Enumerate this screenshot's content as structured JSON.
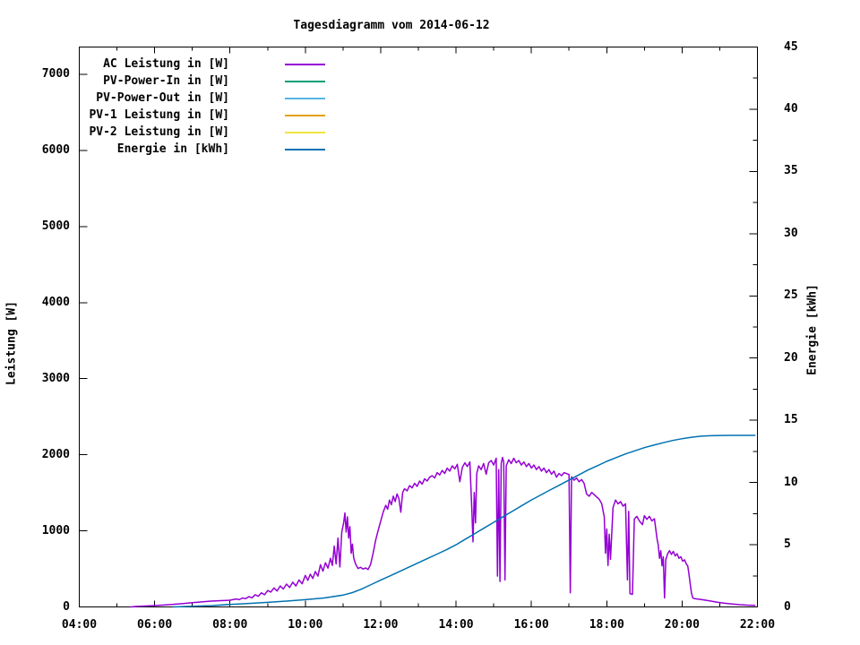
{
  "page": {
    "background": "#ffffff"
  },
  "chart_data": {
    "type": "line",
    "title": "Tagesdiagramm vom 2014-06-12",
    "grid": false,
    "legend_position": "inside-top-left",
    "x_axis": {
      "range_minutes": [
        240,
        1320
      ],
      "tick_labels": [
        "04:00",
        "06:00",
        "08:00",
        "10:00",
        "12:00",
        "14:00",
        "16:00",
        "18:00",
        "20:00",
        "22:00"
      ],
      "major_step_hours": 2,
      "minor_step_hours": 1
    },
    "y_left": {
      "label": "Leistung [W]",
      "range": [
        0,
        7360
      ],
      "ticks": [
        0,
        1000,
        2000,
        3000,
        4000,
        5000,
        6000,
        7000
      ],
      "tick_labels": [
        "0",
        "1000",
        "2000",
        "3000",
        "4000",
        "5000",
        "6000",
        "7000"
      ]
    },
    "y_right": {
      "label": "Energie [kWh]",
      "range": [
        0,
        45
      ],
      "major_step": 5,
      "minor_step": 2.5,
      "tick_labels": [
        "0",
        "5",
        "10",
        "15",
        "20",
        "25",
        "30",
        "35",
        "40",
        "45"
      ]
    },
    "legend": [
      {
        "label": "AC Leistung in [W]",
        "color": "#9400d3"
      },
      {
        "label": "PV-Power-In in [W]",
        "color": "#009e73"
      },
      {
        "label": "PV-Power-Out in [W]",
        "color": "#56b4e9"
      },
      {
        "label": "PV-1 Leistung in [W]",
        "color": "#e69f00"
      },
      {
        "label": "PV-2 Leistung in [W]",
        "color": "#f0e442"
      },
      {
        "label": "Energie in [kWh]",
        "color": "#0072b2"
      }
    ],
    "series": [
      {
        "name": "AC Leistung in [W]",
        "color": "#9400d3",
        "axis": "left",
        "points": [
          [
            322,
            0
          ],
          [
            330,
            6
          ],
          [
            345,
            12
          ],
          [
            360,
            18
          ],
          [
            375,
            25
          ],
          [
            390,
            34
          ],
          [
            405,
            44
          ],
          [
            420,
            55
          ],
          [
            435,
            66
          ],
          [
            450,
            76
          ],
          [
            465,
            82
          ],
          [
            480,
            88
          ],
          [
            490,
            105
          ],
          [
            495,
            95
          ],
          [
            500,
            118
          ],
          [
            505,
            108
          ],
          [
            510,
            135
          ],
          [
            515,
            120
          ],
          [
            520,
            160
          ],
          [
            525,
            140
          ],
          [
            530,
            185
          ],
          [
            535,
            160
          ],
          [
            540,
            215
          ],
          [
            545,
            195
          ],
          [
            550,
            250
          ],
          [
            555,
            210
          ],
          [
            560,
            275
          ],
          [
            565,
            235
          ],
          [
            570,
            300
          ],
          [
            575,
            255
          ],
          [
            580,
            325
          ],
          [
            585,
            275
          ],
          [
            590,
            355
          ],
          [
            595,
            305
          ],
          [
            600,
            415
          ],
          [
            604,
            350
          ],
          [
            608,
            430
          ],
          [
            612,
            375
          ],
          [
            616,
            465
          ],
          [
            620,
            405
          ],
          [
            624,
            555
          ],
          [
            628,
            470
          ],
          [
            632,
            580
          ],
          [
            636,
            510
          ],
          [
            640,
            640
          ],
          [
            643,
            545
          ],
          [
            646,
            800
          ],
          [
            649,
            565
          ],
          [
            652,
            905
          ],
          [
            655,
            525
          ],
          [
            658,
            985
          ],
          [
            661,
            1105
          ],
          [
            663,
            1235
          ],
          [
            665,
            985
          ],
          [
            667,
            1185
          ],
          [
            669,
            905
          ],
          [
            671,
            1055
          ],
          [
            673,
            705
          ],
          [
            675,
            825
          ],
          [
            677,
            645
          ],
          [
            680,
            565
          ],
          [
            684,
            505
          ],
          [
            688,
            520
          ],
          [
            692,
            498
          ],
          [
            696,
            512
          ],
          [
            700,
            492
          ],
          [
            704,
            560
          ],
          [
            708,
            705
          ],
          [
            712,
            875
          ],
          [
            716,
            1005
          ],
          [
            720,
            1125
          ],
          [
            724,
            1245
          ],
          [
            728,
            1335
          ],
          [
            731,
            1285
          ],
          [
            734,
            1405
          ],
          [
            737,
            1345
          ],
          [
            740,
            1455
          ],
          [
            743,
            1385
          ],
          [
            746,
            1485
          ],
          [
            749,
            1425
          ],
          [
            752,
            1245
          ],
          [
            755,
            1505
          ],
          [
            758,
            1555
          ],
          [
            762,
            1525
          ],
          [
            766,
            1595
          ],
          [
            770,
            1565
          ],
          [
            774,
            1625
          ],
          [
            778,
            1585
          ],
          [
            782,
            1655
          ],
          [
            786,
            1615
          ],
          [
            790,
            1685
          ],
          [
            794,
            1655
          ],
          [
            798,
            1705
          ],
          [
            802,
            1725
          ],
          [
            806,
            1695
          ],
          [
            810,
            1765
          ],
          [
            814,
            1735
          ],
          [
            818,
            1795
          ],
          [
            822,
            1755
          ],
          [
            826,
            1825
          ],
          [
            830,
            1785
          ],
          [
            834,
            1855
          ],
          [
            838,
            1815
          ],
          [
            842,
            1875
          ],
          [
            846,
            1645
          ],
          [
            850,
            1835
          ],
          [
            854,
            1895
          ],
          [
            858,
            1845
          ],
          [
            862,
            1905
          ],
          [
            865,
            1305
          ],
          [
            867,
            855
          ],
          [
            869,
            1505
          ],
          [
            871,
            1105
          ],
          [
            873,
            1755
          ],
          [
            876,
            1855
          ],
          [
            880,
            1805
          ],
          [
            884,
            1885
          ],
          [
            888,
            1745
          ],
          [
            892,
            1895
          ],
          [
            896,
            1925
          ],
          [
            900,
            1865
          ],
          [
            904,
            1955
          ],
          [
            906,
            405
          ],
          [
            908,
            1805
          ],
          [
            910,
            335
          ],
          [
            912,
            1885
          ],
          [
            914,
            1965
          ],
          [
            916,
            1905
          ],
          [
            918,
            355
          ],
          [
            920,
            1855
          ],
          [
            924,
            1935
          ],
          [
            928,
            1885
          ],
          [
            932,
            1955
          ],
          [
            936,
            1895
          ],
          [
            940,
            1925
          ],
          [
            944,
            1865
          ],
          [
            948,
            1905
          ],
          [
            952,
            1845
          ],
          [
            956,
            1885
          ],
          [
            960,
            1825
          ],
          [
            964,
            1865
          ],
          [
            968,
            1805
          ],
          [
            972,
            1845
          ],
          [
            976,
            1785
          ],
          [
            980,
            1825
          ],
          [
            984,
            1765
          ],
          [
            988,
            1805
          ],
          [
            992,
            1745
          ],
          [
            996,
            1785
          ],
          [
            1000,
            1705
          ],
          [
            1004,
            1755
          ],
          [
            1008,
            1725
          ],
          [
            1012,
            1765
          ],
          [
            1020,
            1740
          ],
          [
            1022,
            185
          ],
          [
            1024,
            1710
          ],
          [
            1028,
            1665
          ],
          [
            1032,
            1695
          ],
          [
            1036,
            1645
          ],
          [
            1040,
            1675
          ],
          [
            1044,
            1625
          ],
          [
            1048,
            1485
          ],
          [
            1052,
            1455
          ],
          [
            1056,
            1505
          ],
          [
            1060,
            1475
          ],
          [
            1064,
            1445
          ],
          [
            1068,
            1415
          ],
          [
            1072,
            1355
          ],
          [
            1076,
            1185
          ],
          [
            1078,
            705
          ],
          [
            1080,
            1025
          ],
          [
            1082,
            545
          ],
          [
            1084,
            955
          ],
          [
            1086,
            625
          ],
          [
            1090,
            1305
          ],
          [
            1094,
            1405
          ],
          [
            1098,
            1355
          ],
          [
            1102,
            1385
          ],
          [
            1106,
            1325
          ],
          [
            1110,
            1355
          ],
          [
            1113,
            355
          ],
          [
            1115,
            1255
          ],
          [
            1117,
            175
          ],
          [
            1121,
            165
          ],
          [
            1124,
            1155
          ],
          [
            1128,
            1190
          ],
          [
            1132,
            1130
          ],
          [
            1137,
            1082
          ],
          [
            1140,
            1200
          ],
          [
            1144,
            1150
          ],
          [
            1148,
            1190
          ],
          [
            1152,
            1130
          ],
          [
            1156,
            1160
          ],
          [
            1160,
            900
          ],
          [
            1162,
            812
          ],
          [
            1164,
            640
          ],
          [
            1166,
            740
          ],
          [
            1168,
            540
          ],
          [
            1170,
            660
          ],
          [
            1172,
            118
          ],
          [
            1174,
            620
          ],
          [
            1177,
            700
          ],
          [
            1180,
            740
          ],
          [
            1183,
            690
          ],
          [
            1186,
            730
          ],
          [
            1189,
            670
          ],
          [
            1192,
            700
          ],
          [
            1195,
            640
          ],
          [
            1198,
            660
          ],
          [
            1201,
            600
          ],
          [
            1204,
            620
          ],
          [
            1207,
            560
          ],
          [
            1209,
            540
          ],
          [
            1211,
            430
          ],
          [
            1213,
            300
          ],
          [
            1215,
            180
          ],
          [
            1217,
            120
          ],
          [
            1220,
            108
          ],
          [
            1232,
            95
          ],
          [
            1244,
            80
          ],
          [
            1256,
            62
          ],
          [
            1268,
            48
          ],
          [
            1280,
            38
          ],
          [
            1292,
            30
          ],
          [
            1304,
            24
          ],
          [
            1316,
            20
          ]
        ]
      },
      {
        "name": "Energie in [kWh]",
        "color": "#0072b2",
        "axis": "right",
        "points": [
          [
            390,
            0
          ],
          [
            420,
            0.05
          ],
          [
            450,
            0.1
          ],
          [
            480,
            0.2
          ],
          [
            510,
            0.28
          ],
          [
            540,
            0.37
          ],
          [
            570,
            0.47
          ],
          [
            600,
            0.58
          ],
          [
            630,
            0.72
          ],
          [
            660,
            0.95
          ],
          [
            675,
            1.15
          ],
          [
            690,
            1.45
          ],
          [
            705,
            1.8
          ],
          [
            720,
            2.15
          ],
          [
            735,
            2.5
          ],
          [
            750,
            2.85
          ],
          [
            765,
            3.2
          ],
          [
            780,
            3.55
          ],
          [
            795,
            3.9
          ],
          [
            810,
            4.25
          ],
          [
            825,
            4.6
          ],
          [
            840,
            5.0
          ],
          [
            855,
            5.45
          ],
          [
            870,
            5.9
          ],
          [
            885,
            6.35
          ],
          [
            900,
            6.8
          ],
          [
            915,
            7.25
          ],
          [
            930,
            7.7
          ],
          [
            945,
            8.15
          ],
          [
            960,
            8.6
          ],
          [
            975,
            9.0
          ],
          [
            990,
            9.4
          ],
          [
            1005,
            9.8
          ],
          [
            1020,
            10.2
          ],
          [
            1035,
            10.6
          ],
          [
            1050,
            11.0
          ],
          [
            1065,
            11.35
          ],
          [
            1080,
            11.7
          ],
          [
            1095,
            12.0
          ],
          [
            1110,
            12.3
          ],
          [
            1125,
            12.55
          ],
          [
            1140,
            12.8
          ],
          [
            1155,
            13.0
          ],
          [
            1170,
            13.2
          ],
          [
            1185,
            13.38
          ],
          [
            1200,
            13.52
          ],
          [
            1215,
            13.64
          ],
          [
            1230,
            13.72
          ],
          [
            1245,
            13.76
          ],
          [
            1260,
            13.78
          ],
          [
            1280,
            13.79
          ],
          [
            1300,
            13.79
          ],
          [
            1316,
            13.79
          ]
        ]
      }
    ]
  }
}
